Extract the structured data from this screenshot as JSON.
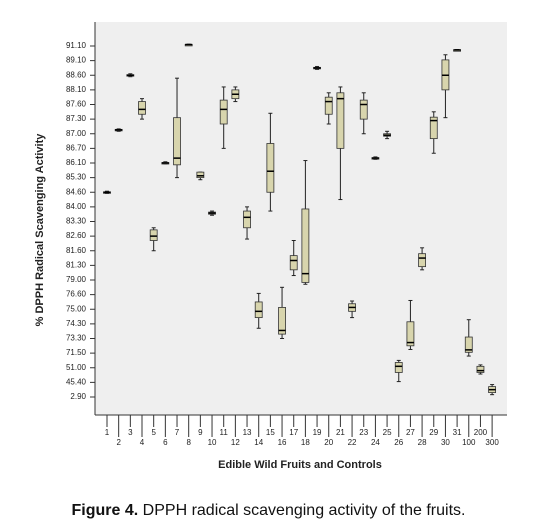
{
  "chart_data": {
    "type": "box",
    "x_label": "Edible Wild Fruits and Controls",
    "y_label": "% DPPH Radical Scavenging Activity",
    "y_scale": "tick-spaced",
    "ylim": [
      2.9,
      91.1
    ],
    "yticks": [
      {
        "value": 91.1,
        "label": "91.10"
      },
      {
        "value": 89.1,
        "label": "89.10"
      },
      {
        "value": 88.6,
        "label": "88.60"
      },
      {
        "value": 88.1,
        "label": "88.10"
      },
      {
        "value": 87.6,
        "label": "87.60"
      },
      {
        "value": 87.3,
        "label": "87.30"
      },
      {
        "value": 87.0,
        "label": "87.00"
      },
      {
        "value": 86.7,
        "label": "86.70"
      },
      {
        "value": 86.1,
        "label": "86.10"
      },
      {
        "value": 85.3,
        "label": "85.30"
      },
      {
        "value": 84.6,
        "label": "84.60"
      },
      {
        "value": 84.0,
        "label": "84.00"
      },
      {
        "value": 83.3,
        "label": "83.30"
      },
      {
        "value": 82.6,
        "label": "82.60"
      },
      {
        "value": 81.6,
        "label": "81.60"
      },
      {
        "value": 81.3,
        "label": "81.30"
      },
      {
        "value": 79.0,
        "label": "79.00"
      },
      {
        "value": 76.6,
        "label": "76.60"
      },
      {
        "value": 75.0,
        "label": "75.00"
      },
      {
        "value": 74.3,
        "label": "74.30"
      },
      {
        "value": 73.3,
        "label": "73.30"
      },
      {
        "value": 71.5,
        "label": "71.50"
      },
      {
        "value": 51.0,
        "label": "51.00"
      },
      {
        "value": 45.4,
        "label": "45.40"
      },
      {
        "value": 2.9,
        "label": "2.90"
      }
    ],
    "categories": [
      "1",
      "2",
      "3",
      "4",
      "5",
      "6",
      "7",
      "8",
      "9",
      "10",
      "11",
      "12",
      "13",
      "14",
      "15",
      "16",
      "17",
      "18",
      "19",
      "20",
      "21",
      "22",
      "23",
      "24",
      "25",
      "26",
      "27",
      "28",
      "29",
      "30",
      "31",
      "100",
      "200",
      "300"
    ],
    "color": "#d8d5ad",
    "min": [
      84.55,
      87.05,
      88.55,
      87.3,
      81.6,
      86.05,
      85.3,
      91.25,
      85.2,
      83.6,
      86.7,
      87.7,
      82.4,
      74.0,
      83.8,
      73.3,
      79.7,
      78.3,
      88.8,
      87.2,
      84.3,
      74.6,
      87.0,
      86.25,
      86.9,
      45.7,
      71.95,
      80.6,
      86.5,
      87.33,
      90.5,
      67.4,
      48.6,
      9.7
    ],
    "q1": [
      84.58,
      87.07,
      88.58,
      87.4,
      82.3,
      86.08,
      86.0,
      91.28,
      85.3,
      83.65,
      87.2,
      87.8,
      83.0,
      74.6,
      84.6,
      73.6,
      80.6,
      78.6,
      88.83,
      87.4,
      86.7,
      74.9,
      87.3,
      86.28,
      86.95,
      49.2,
      72.4,
      81.1,
      86.9,
      88.1,
      90.53,
      71.6,
      49.2,
      15.7
    ],
    "median": [
      84.6,
      87.08,
      88.6,
      87.5,
      82.6,
      86.1,
      86.3,
      91.3,
      85.4,
      83.7,
      87.5,
      87.95,
      83.5,
      74.9,
      85.65,
      73.85,
      81.4,
      80.0,
      88.85,
      87.7,
      87.8,
      75.2,
      87.6,
      86.3,
      86.97,
      53.0,
      72.8,
      81.45,
      87.27,
      88.6,
      90.56,
      71.9,
      49.9,
      24.2
    ],
    "q3": [
      84.62,
      87.09,
      88.62,
      87.7,
      82.9,
      86.12,
      87.33,
      91.32,
      85.6,
      83.75,
      87.75,
      88.1,
      83.8,
      75.8,
      86.8,
      75.2,
      81.5,
      83.9,
      88.87,
      87.85,
      88.0,
      75.6,
      87.75,
      86.32,
      87.0,
      58.4,
      74.4,
      81.54,
      87.34,
      89.2,
      90.59,
      73.4,
      53.0,
      33.1
    ],
    "max": [
      84.65,
      87.1,
      88.65,
      87.8,
      83.0,
      86.15,
      88.5,
      91.35,
      85.6,
      83.8,
      88.2,
      88.2,
      84.0,
      76.8,
      87.42,
      77.8,
      82.3,
      86.2,
      88.9,
      88.0,
      88.2,
      75.9,
      88.0,
      86.35,
      87.05,
      61.3,
      75.96,
      81.8,
      87.45,
      89.9,
      90.62,
      74.5,
      55.0,
      39.0
    ]
  },
  "figure": {
    "label": "Figure 4.",
    "text": " DPPH radical scavenging activity of the fruits."
  }
}
